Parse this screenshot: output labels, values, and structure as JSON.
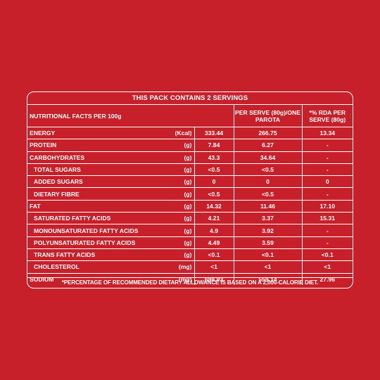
{
  "title": "THIS PACK CONTAINS 2 SERVINGS",
  "header": {
    "name": "NUTRITIONAL FACTS PER 100g",
    "serve": "PER SERVE (80g)/ONE PAROTA",
    "rda": "*% RDA PER SERVE (80g)"
  },
  "rows": [
    {
      "name": "ENERGY",
      "unit": "(Kcal)",
      "per100g": "333.44",
      "serve": "266.75",
      "rda": "13.34",
      "sub": false
    },
    {
      "name": "PROTEIN",
      "unit": "(g)",
      "per100g": "7.84",
      "serve": "6.27",
      "rda": "-",
      "sub": false
    },
    {
      "name": "CARBOHYDRATES",
      "unit": "(g)",
      "per100g": "43.3",
      "serve": "34.64",
      "rda": "-",
      "sub": false
    },
    {
      "name": "TOTAL SUGARS",
      "unit": "(g)",
      "per100g": "<0.5",
      "serve": "<0.5",
      "rda": "-",
      "sub": true
    },
    {
      "name": "ADDED SUGARS",
      "unit": "(g)",
      "per100g": "0",
      "serve": "0",
      "rda": "0",
      "sub": true
    },
    {
      "name": "DIETARY FIBRE",
      "unit": "(g)",
      "per100g": "<0.5",
      "serve": "<0.5",
      "rda": "-",
      "sub": true
    },
    {
      "name": "FAT",
      "unit": "(g)",
      "per100g": "14.32",
      "serve": "11.46",
      "rda": "17.10",
      "sub": false
    },
    {
      "name": "SATURATED FATTY ACIDS",
      "unit": "(g)",
      "per100g": "4.21",
      "serve": "3.37",
      "rda": "15.31",
      "sub": true
    },
    {
      "name": "MONOUNSATURATED FATTY ACIDS",
      "unit": "(g)",
      "per100g": "4.9",
      "serve": "3.92",
      "rda": "-",
      "sub": true
    },
    {
      "name": "POLYUNSATURATED FATTY ACIDS",
      "unit": "(g)",
      "per100g": "4.49",
      "serve": "3.59",
      "rda": "-",
      "sub": true
    },
    {
      "name": "TRANS FATTY ACIDS",
      "unit": "(g)",
      "per100g": "<0.1",
      "serve": "<0.1",
      "rda": "<0.1",
      "sub": true
    },
    {
      "name": "CHOLESTEROL",
      "unit": "(mg)",
      "per100g": "<1",
      "serve": "<1",
      "rda": "<1",
      "sub": true
    },
    {
      "name": "SODIUM",
      "unit": "(mg)",
      "per100g": "698.93",
      "serve": "559.14",
      "rda": "27.96",
      "sub": false
    }
  ],
  "footnote": "*PERCENTAGE OF RECOMMENDED DIETARY ALLOWANCE IS BASED ON A 2,000-CALORIE DIET.",
  "colors": {
    "background": "#c8202a",
    "text": "#ffffff"
  }
}
